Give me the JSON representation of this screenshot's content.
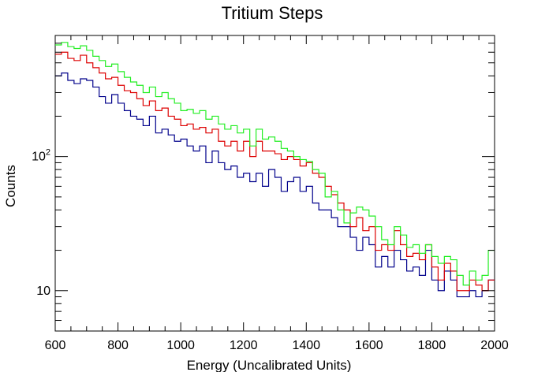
{
  "chart_data": {
    "type": "line",
    "title": "Tritium Steps",
    "xlabel": "Energy (Uncalibrated Units)",
    "ylabel": "Counts",
    "xlim": [
      600,
      2000
    ],
    "ylim": [
      5,
      800
    ],
    "log_y": true,
    "grid": false,
    "x_ticks": [
      600,
      800,
      1000,
      1200,
      1400,
      1600,
      1800,
      2000
    ],
    "x_tick_labels": [
      "600",
      "800",
      "1000",
      "1200",
      "1400",
      "1600",
      "1800",
      "2000"
    ],
    "y_ticks": [
      10,
      100
    ],
    "y_tick_labels": [
      {
        "base": "10",
        "exp": ""
      },
      {
        "base": "10",
        "exp": "2"
      }
    ],
    "bin_width": 20,
    "x": [
      600,
      620,
      640,
      660,
      680,
      700,
      720,
      740,
      760,
      780,
      800,
      820,
      840,
      860,
      880,
      900,
      920,
      940,
      960,
      980,
      1000,
      1020,
      1040,
      1060,
      1080,
      1100,
      1120,
      1140,
      1160,
      1180,
      1200,
      1220,
      1240,
      1260,
      1280,
      1300,
      1320,
      1340,
      1360,
      1380,
      1400,
      1420,
      1440,
      1460,
      1480,
      1500,
      1520,
      1540,
      1560,
      1580,
      1600,
      1620,
      1640,
      1660,
      1680,
      1700,
      1720,
      1740,
      1760,
      1780,
      1800,
      1820,
      1840,
      1860,
      1880,
      1900,
      1920,
      1940,
      1960,
      1980
    ],
    "series": [
      {
        "color": "#00008b",
        "values": [
          400,
          420,
          370,
          350,
          380,
          370,
          330,
          280,
          250,
          290,
          250,
          220,
          200,
          190,
          170,
          200,
          150,
          160,
          145,
          130,
          135,
          120,
          110,
          120,
          90,
          110,
          90,
          80,
          85,
          70,
          75,
          65,
          75,
          60,
          80,
          70,
          55,
          65,
          70,
          55,
          60,
          45,
          40,
          40,
          35,
          30,
          30,
          25,
          20,
          25,
          22,
          15,
          18,
          15,
          20,
          17,
          14,
          15,
          13,
          20,
          12,
          10,
          14,
          12,
          9,
          9,
          10,
          9,
          10,
          12
        ],
        "values_hist": [
          400,
          420,
          370,
          350,
          380,
          370,
          330,
          280,
          250,
          290,
          250,
          220,
          200,
          190,
          170,
          200,
          150,
          160,
          145,
          130,
          135,
          120,
          110,
          120,
          90,
          110,
          90,
          80,
          85,
          70,
          75,
          65,
          75,
          60,
          80,
          70,
          55,
          65,
          70,
          55,
          60,
          45,
          40,
          40,
          35,
          30,
          30,
          25,
          20,
          25,
          22,
          15,
          18,
          15,
          20,
          17,
          14,
          15,
          13,
          20,
          12,
          10,
          14,
          12,
          9,
          9,
          10,
          9,
          10,
          12
        ]
      },
      {
        "color": "#dd0000",
        "values": [
          580,
          600,
          540,
          520,
          570,
          500,
          460,
          420,
          380,
          390,
          340,
          310,
          300,
          270,
          240,
          260,
          220,
          230,
          200,
          190,
          170,
          175,
          160,
          165,
          150,
          160,
          130,
          120,
          130,
          110,
          130,
          100,
          130,
          110,
          110,
          105,
          95,
          100,
          95,
          85,
          90,
          75,
          70,
          60,
          52,
          45,
          40,
          30,
          35,
          28,
          30,
          20,
          22,
          20,
          28,
          22,
          18,
          19,
          17,
          22,
          15,
          12,
          16,
          14,
          10,
          10,
          12,
          11,
          10,
          12
        ],
        "values_hist": [
          580,
          600,
          540,
          520,
          570,
          500,
          460,
          420,
          380,
          390,
          340,
          310,
          300,
          270,
          240,
          260,
          220,
          230,
          200,
          190,
          170,
          175,
          160,
          165,
          150,
          160,
          130,
          120,
          130,
          110,
          130,
          100,
          130,
          110,
          110,
          105,
          95,
          100,
          95,
          85,
          90,
          75,
          70,
          60,
          52,
          45,
          40,
          30,
          35,
          28,
          30,
          20,
          22,
          20,
          28,
          22,
          18,
          19,
          17,
          22,
          15,
          12,
          16,
          14,
          10,
          10,
          12,
          11,
          10,
          12
        ]
      },
      {
        "color": "#22ee22",
        "values": [
          680,
          710,
          660,
          640,
          670,
          620,
          560,
          520,
          470,
          490,
          430,
          390,
          360,
          340,
          300,
          330,
          280,
          300,
          270,
          250,
          220,
          225,
          210,
          220,
          190,
          200,
          175,
          160,
          170,
          150,
          160,
          120,
          160,
          135,
          140,
          130,
          115,
          110,
          100,
          95,
          92,
          80,
          75,
          50,
          55,
          40,
          32,
          38,
          42,
          40,
          36,
          30,
          24,
          22,
          30,
          26,
          21,
          22,
          19,
          22,
          18,
          16,
          18,
          17,
          13,
          11,
          14,
          12,
          13,
          20
        ],
        "values_hist": [
          680,
          710,
          660,
          640,
          670,
          620,
          560,
          520,
          470,
          490,
          430,
          390,
          360,
          340,
          300,
          330,
          280,
          300,
          270,
          250,
          220,
          225,
          210,
          220,
          190,
          200,
          175,
          160,
          170,
          150,
          160,
          120,
          160,
          135,
          140,
          130,
          115,
          110,
          100,
          95,
          92,
          80,
          75,
          50,
          55,
          40,
          32,
          38,
          42,
          40,
          36,
          30,
          24,
          22,
          30,
          26,
          21,
          22,
          19,
          22,
          18,
          16,
          18,
          17,
          13,
          11,
          14,
          12,
          13,
          20
        ]
      }
    ]
  }
}
